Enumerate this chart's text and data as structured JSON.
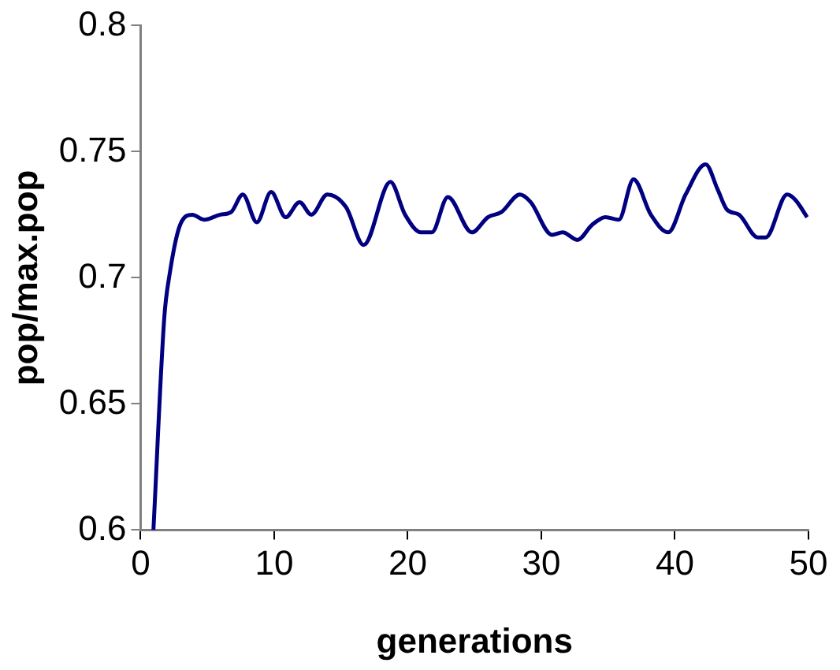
{
  "chart_data": {
    "type": "line",
    "xlabel": "generations",
    "ylabel": "pop/max.pop",
    "x": [
      0.96,
      1.77,
      2.16,
      2.96,
      3.88,
      4.76,
      5.96,
      6.77,
      7.65,
      8.7,
      9.77,
      10.86,
      11.9,
      12.78,
      13.98,
      15.38,
      16.7,
      18.7,
      19.8,
      21.0,
      21.8,
      23.0,
      24.8,
      26.0,
      27.0,
      28.4,
      29.2,
      30.8,
      31.6,
      32.7,
      33.8,
      34.8,
      35.8,
      36.9,
      38.2,
      39.5,
      40.8,
      42.3,
      43.2,
      43.9,
      44.8,
      46.2,
      46.8,
      48.4,
      49.0,
      49.9
    ],
    "series": [
      {
        "color": "#000080",
        "values": [
          0.6,
          0.684,
          0.701,
          0.721,
          0.725,
          0.723,
          0.725,
          0.726,
          0.733,
          0.722,
          0.734,
          0.724,
          0.73,
          0.725,
          0.733,
          0.728,
          0.713,
          0.738,
          0.725,
          0.718,
          0.718,
          0.732,
          0.718,
          0.724,
          0.726,
          0.733,
          0.73,
          0.717,
          0.718,
          0.715,
          0.721,
          0.724,
          0.723,
          0.739,
          0.725,
          0.718,
          0.733,
          0.745,
          0.735,
          0.727,
          0.725,
          0.716,
          0.716,
          0.733,
          0.731,
          0.724
        ]
      }
    ],
    "xlim": [
      0,
      50
    ],
    "xticks": [
      0,
      10,
      20,
      30,
      40,
      50
    ],
    "ylim": [
      0.6,
      0.8
    ],
    "yticks": [
      {
        "value": 0.6,
        "label": "0.6"
      },
      {
        "value": 0.65,
        "label": "0.65"
      },
      {
        "value": 0.7,
        "label": "0.7"
      },
      {
        "value": 0.75,
        "label": "0.75"
      },
      {
        "value": 0.8,
        "label": "0.8"
      }
    ],
    "grid": false,
    "legend": false,
    "marker": "none",
    "line_style": "solid"
  }
}
